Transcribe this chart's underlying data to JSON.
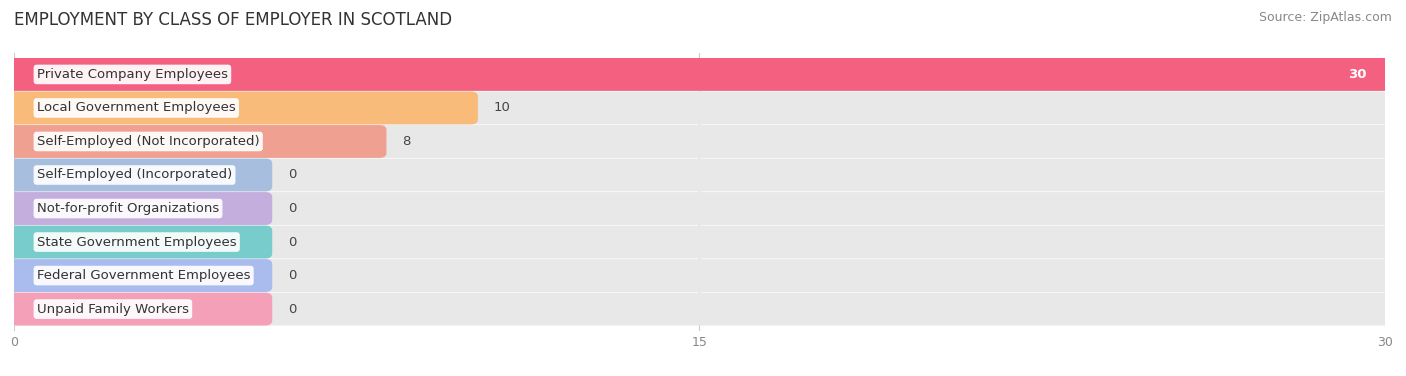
{
  "title": "EMPLOYMENT BY CLASS OF EMPLOYER IN SCOTLAND",
  "source": "Source: ZipAtlas.com",
  "categories": [
    "Private Company Employees",
    "Local Government Employees",
    "Self-Employed (Not Incorporated)",
    "Self-Employed (Incorporated)",
    "Not-for-profit Organizations",
    "State Government Employees",
    "Federal Government Employees",
    "Unpaid Family Workers"
  ],
  "values": [
    30,
    10,
    8,
    0,
    0,
    0,
    0,
    0
  ],
  "bar_colors": [
    "#F46080",
    "#F9BB7A",
    "#F0A090",
    "#A8BEDE",
    "#C4AEDE",
    "#78CCCC",
    "#AABCEE",
    "#F4A0B8"
  ],
  "track_color": "#E8E8E8",
  "label_bg_color": "#FFFFFF",
  "xlim": [
    0,
    30
  ],
  "xticks": [
    0,
    15,
    30
  ],
  "title_fontsize": 12,
  "bar_label_fontsize": 9.5,
  "category_fontsize": 9.5,
  "source_fontsize": 9
}
